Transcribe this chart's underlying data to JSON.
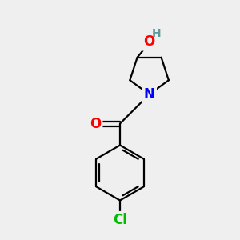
{
  "background_color": "#efefef",
  "atom_colors": {
    "N": "#0000ff",
    "O_carbonyl": "#ff0000",
    "O_hydroxyl": "#ff0000",
    "Cl": "#00bb00",
    "H_hydroxyl": "#5a9a9a"
  },
  "bond_color": "#000000",
  "bond_width": 1.6,
  "font_size_atoms": 12,
  "font_size_H": 10,
  "figsize": [
    3.0,
    3.0
  ],
  "dpi": 100,
  "xlim": [
    0,
    10
  ],
  "ylim": [
    0,
    10
  ]
}
